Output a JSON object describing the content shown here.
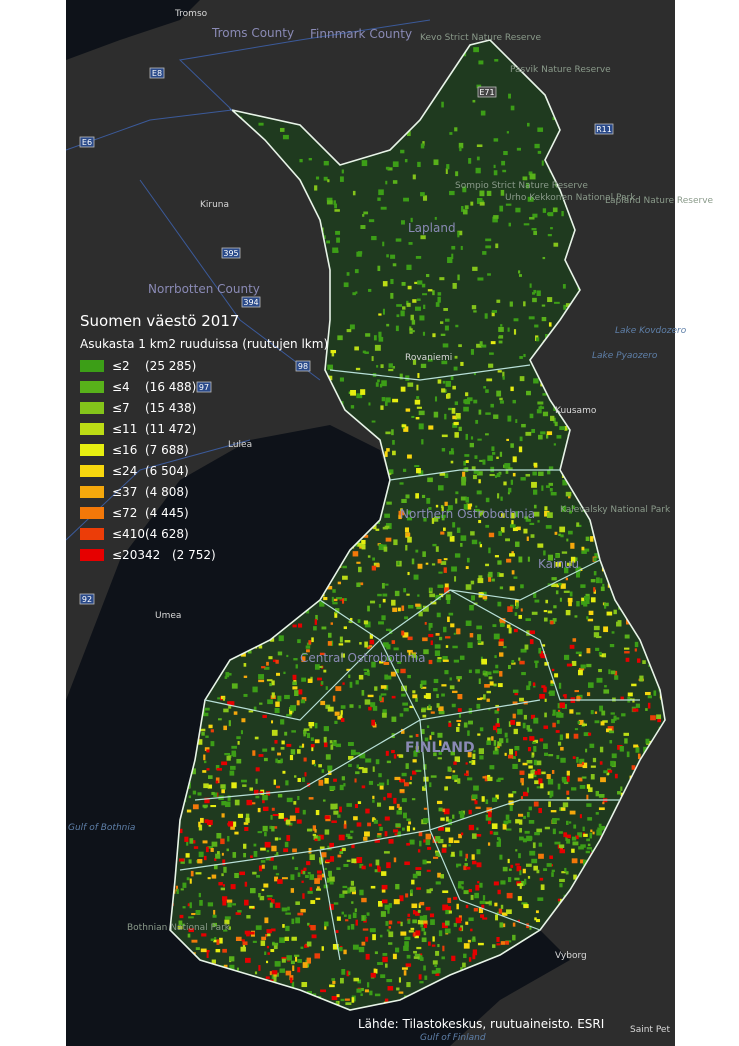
{
  "map": {
    "legend": {
      "title": "Suomen väestö 2017",
      "subtitle": "Asukasta 1 km2 ruuduissa (ruutujen lkm)",
      "items": [
        {
          "label": "≤2",
          "count": "(25 285)",
          "color": "#3c9e17"
        },
        {
          "label": "≤4",
          "count": "(16 488)",
          "color": "#58b11a"
        },
        {
          "label": "≤7",
          "count": "(15 438)",
          "color": "#84c41a"
        },
        {
          "label": "≤11",
          "count": "(11 472)",
          "color": "#bcdc15"
        },
        {
          "label": "≤16",
          "count": "(7 688)",
          "color": "#e6ee10"
        },
        {
          "label": "≤24",
          "count": "(6 504)",
          "color": "#f7d70e"
        },
        {
          "label": "≤37",
          "count": "(4 808)",
          "color": "#f5a80c"
        },
        {
          "label": "≤72",
          "count": "(4 445)",
          "color": "#f37809"
        },
        {
          "label": "≤410",
          "count": "(4 628)",
          "color": "#ec3d08"
        },
        {
          "label": "≤20342",
          "count": "(2 752)",
          "color": "#e60000"
        }
      ]
    },
    "places": {
      "tromso": "Tromso",
      "troms": "Troms County",
      "finnmark": "Finnmark County",
      "kevo": "Kevo Strict Nature Reserve",
      "pasvik": "Pasvik Nature Reserve",
      "sompio": "Sompio Strict Nature Reserve",
      "urho": "Urho Kekkonen National Park",
      "laplandres": "Lapland Nature Reserve",
      "kiruna": "Kiruna",
      "lapland": "Lapland",
      "norrbotten": "Norrbotten County",
      "kovdozero": "Lake Kovdozero",
      "pyaozero": "Lake Pyaozero",
      "rovaniemi": "Rovaniemi",
      "kuusamo": "Kuusamo",
      "lulea": "Lulea",
      "northost": "Northern Ostrobothnia",
      "kalevalsky": "Kalevalsky National Park",
      "kainuu": "Kainuu",
      "umea": "Umea",
      "centralost": "Central Ostrobothnia",
      "finland": "FINLAND",
      "gulfb": "Gulf of Bothnia",
      "bothnianp": "Bothnian National Park",
      "vyborg": "Vyborg",
      "saintpet": "Saint Pet",
      "gulff": "Gulf of Finland"
    },
    "roads": [
      "E6",
      "E8",
      "E71",
      "R11",
      "395",
      "394",
      "98",
      "97",
      "92"
    ],
    "source": "Lähde: Tilastokeskus, ruutuaineisto. ESRI"
  }
}
